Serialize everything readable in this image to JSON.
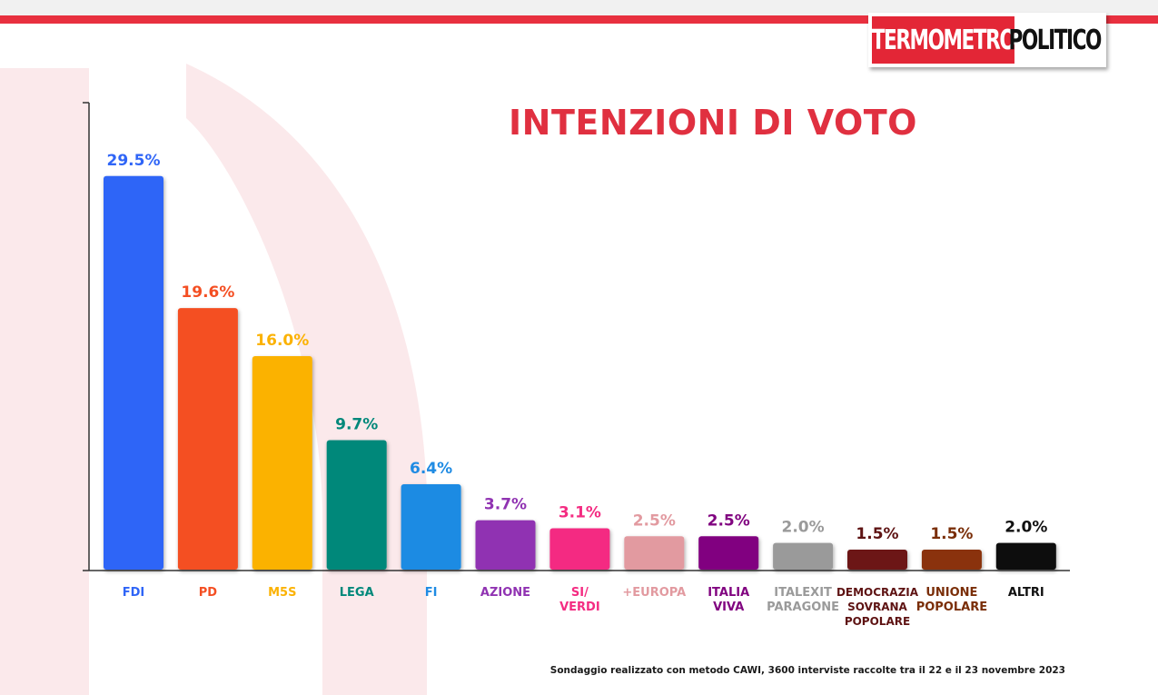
{
  "logo": {
    "part1": "TERMOMETRO",
    "part2": "POLITICO"
  },
  "colors": {
    "accent": "#e03040",
    "background_shape": "#fbe9eb"
  },
  "chart_data": {
    "type": "bar",
    "title": "INTENZIONI DI VOTO",
    "unit": "%",
    "categories": [
      "FDI",
      "PD",
      "M5S",
      "LEGA",
      "FI",
      "AZIONE",
      "SI/ VERDI",
      "+EUROPA",
      "ITALIA VIVA",
      "ITALEXIT PARAGONE",
      "DEMOCRAZIA SOVRANA POPOLARE",
      "UNIONE POPOLARE",
      "ALTRI"
    ],
    "category_lines": [
      [
        "FDI"
      ],
      [
        "PD"
      ],
      [
        "M5S"
      ],
      [
        "LEGA"
      ],
      [
        "FI"
      ],
      [
        "AZIONE"
      ],
      [
        "SI/",
        "VERDI"
      ],
      [
        "+EUROPA"
      ],
      [
        "ITALIA",
        "VIVA"
      ],
      [
        "ITALEXIT",
        "PARAGONE"
      ],
      [
        "DEMOCRAZIA",
        "SOVRANA",
        "POPOLARE"
      ],
      [
        "UNIONE",
        "POPOLARE"
      ],
      [
        "ALTRI"
      ]
    ],
    "values": [
      29.5,
      19.6,
      16.0,
      9.7,
      6.4,
      3.7,
      3.1,
      2.5,
      2.5,
      2.0,
      1.5,
      1.5,
      2.0
    ],
    "value_labels": [
      "29.5%",
      "19.6%",
      "16.0%",
      "9.7%",
      "6.4%",
      "3.7%",
      "3.1%",
      "2.5%",
      "2.5%",
      "2.0%",
      "1.5%",
      "1.5%",
      "2.0%"
    ],
    "colors": [
      "#2f65f7",
      "#f44f23",
      "#fbb203",
      "#01887a",
      "#1f8be3",
      "#9033b2",
      "#f42c82",
      "#e29aa0",
      "#810480",
      "#9a9a9a",
      "#6c1616",
      "#8a3208",
      "#070707"
    ],
    "label_colors": [
      "#2f65f7",
      "#f44f23",
      "#fbb203",
      "#01887a",
      "#1f8be3",
      "#9033b2",
      "#f42c82",
      "#e29aa0",
      "#810480",
      "#9a9a9a",
      "#5e1313",
      "#7a2e08",
      "#111111"
    ],
    "ylim": [
      0,
      35
    ],
    "grid": false,
    "legend": "none"
  },
  "footer": {
    "source": "Sondaggio realizzato con metodo CAWI, 3600 interviste raccolte tra il 22 e il 23 novembre 2023"
  }
}
